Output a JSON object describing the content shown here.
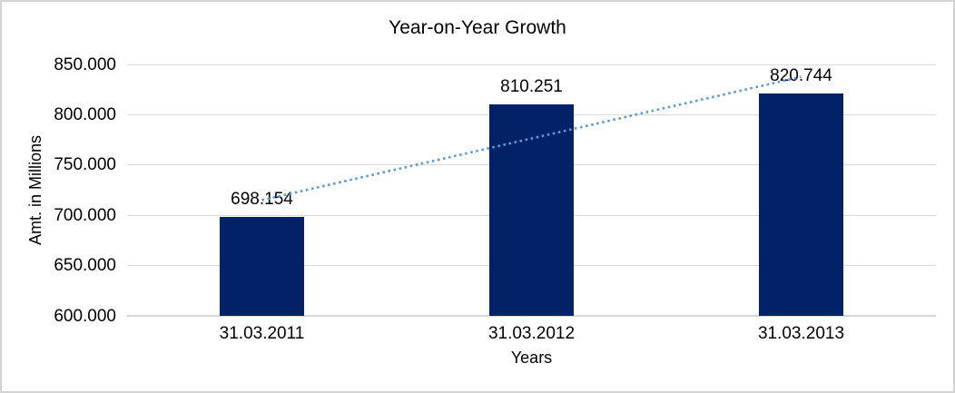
{
  "figure": {
    "background": "#FFFFFF",
    "border_color": "#D3D3D3"
  },
  "chart_data": {
    "type": "bar",
    "title": "Year-on-Year Growth",
    "xlabel": "Years",
    "ylabel": "Amt. in Millions",
    "categories": [
      "31.03.2011",
      "31.03.2012",
      "31.03.2013"
    ],
    "values": [
      698.154,
      810.251,
      820.744
    ],
    "value_labels": [
      "698.154",
      "810.251",
      "820.744"
    ],
    "ylim": [
      600,
      850
    ],
    "ytick_values": [
      600,
      650,
      700,
      750,
      800,
      850
    ],
    "ytick_labels": [
      "600.000",
      "650.000",
      "700.000",
      "750.000",
      "800.000",
      "850.000"
    ],
    "grid": true,
    "legend": false,
    "bar_color": "#022166",
    "gridline_color": "#D9D9D9",
    "axisline_color": "#D6D6D6",
    "text_color": "#000000",
    "trendline": {
      "type": "linear",
      "style": "dotted",
      "color": "#5B9BD5"
    }
  }
}
